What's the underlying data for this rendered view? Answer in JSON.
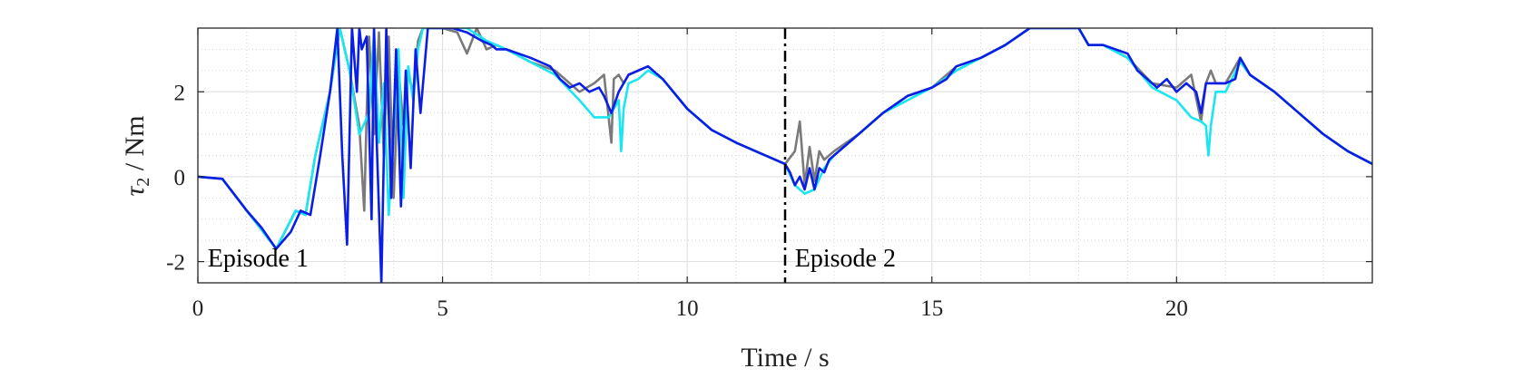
{
  "chart_data": {
    "type": "line",
    "xlabel": "Time / s",
    "ylabel_symbol": "τ",
    "ylabel_subscript": "2",
    "ylabel_unit": " / Nm",
    "xlim": [
      0,
      24
    ],
    "ylim": [
      -2.5,
      3.5
    ],
    "x_ticks": [
      0,
      5,
      10,
      15,
      20
    ],
    "x_tick_labels": [
      "0",
      "5",
      "10",
      "15",
      "20"
    ],
    "y_ticks": [
      -2,
      0,
      2
    ],
    "y_tick_labels": [
      "-2",
      "0",
      "2"
    ],
    "grid": true,
    "minor_grid": true,
    "episode_boundary_x": 12,
    "annotations": [
      {
        "text": "Episode 1",
        "x": 0.2,
        "y": -1.9
      },
      {
        "text": "Episode 2",
        "x": 12.2,
        "y": -1.9
      }
    ],
    "colors": {
      "gray": "#7a7a7a",
      "cyan": "#19e6f0",
      "blue": "#0a1ee6"
    },
    "series": [
      {
        "color_key": "gray",
        "x": [
          0,
          0.5,
          1.0,
          1.6,
          2.0,
          2.2,
          2.4,
          2.7,
          2.9,
          3.1,
          3.3,
          3.4,
          3.45,
          3.5,
          3.6,
          3.7,
          3.8,
          3.9,
          4.0,
          4.1,
          4.2,
          4.3,
          4.4,
          4.5,
          4.6,
          4.8,
          5.0,
          5.3,
          5.5,
          5.7,
          5.9,
          6.1,
          6.3,
          6.8,
          7.3,
          7.8,
          8.1,
          8.3,
          8.45,
          8.5,
          8.6,
          8.7,
          8.8,
          9.0,
          9.2,
          9.5,
          10.0,
          10.5,
          11.0,
          11.5,
          12.0,
          12.2,
          12.3,
          12.4,
          12.5,
          12.6,
          12.7,
          12.8,
          13.0,
          13.5,
          14.0,
          14.5,
          15.0,
          15.5,
          16.0,
          16.5,
          17.0,
          17.5,
          18.0,
          18.2,
          18.5,
          19.0,
          19.5,
          20.0,
          20.3,
          20.5,
          20.6,
          20.7,
          20.8,
          21.0,
          21.3,
          21.5,
          22.0,
          22.5,
          23.0,
          23.5,
          24.0
        ],
        "y": [
          0.0,
          -0.05,
          -0.8,
          -1.7,
          -0.8,
          -0.9,
          0.5,
          2.0,
          3.5,
          2.5,
          1.2,
          -0.8,
          1.5,
          3.3,
          1.0,
          3.4,
          0.5,
          3.3,
          -0.5,
          2.5,
          1.2,
          2.4,
          2.0,
          3.2,
          3.5,
          3.5,
          3.5,
          3.4,
          2.9,
          3.5,
          3.0,
          3.1,
          3.0,
          2.7,
          2.5,
          2.0,
          2.2,
          2.4,
          0.8,
          2.3,
          2.4,
          2.2,
          2.4,
          2.5,
          2.6,
          2.3,
          1.6,
          1.1,
          0.8,
          0.55,
          0.3,
          0.6,
          1.3,
          -0.2,
          0.7,
          -0.1,
          0.6,
          0.4,
          0.6,
          1.0,
          1.5,
          1.9,
          2.1,
          2.6,
          2.8,
          3.1,
          3.5,
          3.5,
          3.5,
          3.1,
          3.1,
          2.8,
          2.2,
          2.1,
          2.4,
          1.3,
          2.2,
          2.5,
          2.2,
          2.2,
          2.8,
          2.4,
          2.0,
          1.5,
          1.0,
          0.6,
          0.3
        ]
      },
      {
        "color_key": "cyan",
        "x": [
          0,
          0.5,
          1.0,
          1.6,
          2.0,
          2.2,
          2.4,
          2.7,
          2.9,
          3.1,
          3.3,
          3.5,
          3.6,
          3.7,
          3.8,
          3.9,
          4.0,
          4.1,
          4.2,
          4.3,
          4.4,
          4.5,
          4.6,
          4.8,
          5.0,
          5.5,
          5.9,
          6.1,
          6.3,
          6.8,
          7.3,
          7.8,
          8.1,
          8.4,
          8.6,
          8.65,
          8.7,
          8.8,
          9.0,
          9.2,
          9.5,
          10.0,
          10.5,
          11.0,
          11.5,
          12.0,
          12.2,
          12.4,
          12.6,
          12.8,
          13.0,
          13.5,
          14.0,
          14.5,
          15.0,
          15.5,
          16.0,
          16.5,
          17.0,
          17.5,
          18.0,
          18.2,
          18.5,
          19.0,
          19.5,
          20.0,
          20.3,
          20.5,
          20.6,
          20.65,
          20.7,
          20.8,
          21.0,
          21.3,
          21.5,
          22.0,
          22.5,
          23.0,
          23.5,
          24.0
        ],
        "y": [
          0.0,
          -0.05,
          -0.8,
          -1.7,
          -0.8,
          -0.9,
          0.5,
          2.0,
          3.5,
          2.5,
          1.0,
          1.5,
          3.4,
          0.8,
          2.2,
          -0.9,
          1.0,
          3.0,
          -0.5,
          2.6,
          1.8,
          3.0,
          3.5,
          3.5,
          3.5,
          3.5,
          3.2,
          3.1,
          3.0,
          2.7,
          2.4,
          1.8,
          1.4,
          1.4,
          1.8,
          0.6,
          1.6,
          2.2,
          2.3,
          2.5,
          2.3,
          1.6,
          1.1,
          0.8,
          0.55,
          0.3,
          -0.2,
          -0.4,
          -0.3,
          0.2,
          0.5,
          1.0,
          1.5,
          1.8,
          2.1,
          2.5,
          2.8,
          3.1,
          3.5,
          3.5,
          3.5,
          3.1,
          3.1,
          2.8,
          2.1,
          1.8,
          1.4,
          1.3,
          1.2,
          0.5,
          1.2,
          2.0,
          2.0,
          2.7,
          2.4,
          2.0,
          1.5,
          1.0,
          0.6,
          0.3
        ]
      },
      {
        "color_key": "blue",
        "x": [
          0,
          0.5,
          1.0,
          1.3,
          1.6,
          1.9,
          2.1,
          2.3,
          2.5,
          2.7,
          2.85,
          2.95,
          3.05,
          3.15,
          3.25,
          3.3,
          3.35,
          3.45,
          3.55,
          3.6,
          3.65,
          3.75,
          3.85,
          3.95,
          4.05,
          4.15,
          4.25,
          4.35,
          4.45,
          4.55,
          4.7,
          4.9,
          5.2,
          5.5,
          5.8,
          6.0,
          6.1,
          6.3,
          6.8,
          7.2,
          7.4,
          7.6,
          7.8,
          8.0,
          8.2,
          8.3,
          8.45,
          8.6,
          8.8,
          9.0,
          9.2,
          9.5,
          10.0,
          10.5,
          11.0,
          11.5,
          12.0,
          12.1,
          12.2,
          12.3,
          12.4,
          12.5,
          12.6,
          12.7,
          12.8,
          12.9,
          13.0,
          13.5,
          14.0,
          14.5,
          15.0,
          15.3,
          15.5,
          16.0,
          16.5,
          17.0,
          17.5,
          18.0,
          18.2,
          18.5,
          19.0,
          19.2,
          19.4,
          19.6,
          19.8,
          20.0,
          20.2,
          20.4,
          20.5,
          20.6,
          20.8,
          21.0,
          21.2,
          21.3,
          21.5,
          22.0,
          22.5,
          23.0,
          23.5,
          24.0
        ],
        "y": [
          0.0,
          -0.05,
          -0.8,
          -1.2,
          -1.7,
          -1.3,
          -0.8,
          -0.9,
          0.5,
          2.0,
          3.5,
          0.5,
          -1.6,
          3.5,
          2.0,
          3.5,
          3.0,
          3.3,
          -1.0,
          3.5,
          1.0,
          -2.5,
          3.5,
          -0.5,
          3.0,
          -0.7,
          2.5,
          0.2,
          3.0,
          1.5,
          3.5,
          3.5,
          3.5,
          3.4,
          3.2,
          3.1,
          3.0,
          3.0,
          2.8,
          2.6,
          2.3,
          2.1,
          2.2,
          2.0,
          2.1,
          1.9,
          1.5,
          2.0,
          2.4,
          2.5,
          2.6,
          2.3,
          1.6,
          1.1,
          0.8,
          0.55,
          0.3,
          0.1,
          -0.2,
          0.0,
          -0.3,
          0.2,
          -0.3,
          0.2,
          0.1,
          0.4,
          0.5,
          1.0,
          1.5,
          1.9,
          2.1,
          2.3,
          2.6,
          2.8,
          3.1,
          3.5,
          3.5,
          3.5,
          3.1,
          3.1,
          2.9,
          2.5,
          2.3,
          2.1,
          2.3,
          2.0,
          2.2,
          2.0,
          1.5,
          2.2,
          2.2,
          2.2,
          2.3,
          2.8,
          2.4,
          2.0,
          1.5,
          1.0,
          0.6,
          0.3
        ]
      }
    ]
  }
}
